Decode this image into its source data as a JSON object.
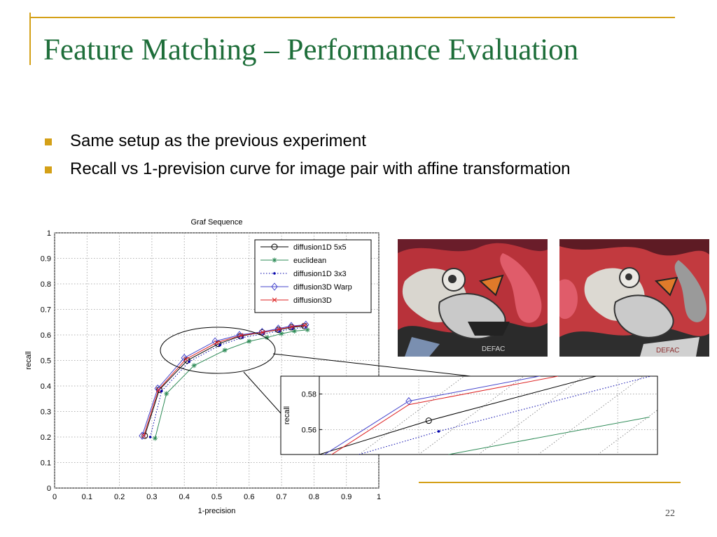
{
  "slide": {
    "title": "Feature Matching – Performance Evaluation",
    "bullets": [
      "Same setup as the previous experiment",
      "Recall vs 1-prevision curve for image pair with affine transformation"
    ],
    "page_number": "22"
  },
  "colors": {
    "title": "#1e6e3a",
    "accent": "#d4a017"
  },
  "chart_data": [
    {
      "type": "line",
      "title": "Graf Sequence",
      "xlabel": "1-precision",
      "ylabel": "recall",
      "xlim": [
        0,
        1
      ],
      "ylim": [
        0,
        1
      ],
      "xticks": [
        "0",
        "0.1",
        "0.2",
        "0.3",
        "0.4",
        "0.5",
        "0.6",
        "0.7",
        "0.8",
        "0.9",
        "1"
      ],
      "yticks": [
        "0",
        "0.1",
        "0.2",
        "0.3",
        "0.4",
        "0.5",
        "0.6",
        "0.7",
        "0.8",
        "0.9",
        "1"
      ],
      "grid": true,
      "legend_position": "top-right",
      "series": [
        {
          "name": "diffusion1D 5x5",
          "color": "#000000",
          "marker": "circle",
          "dash": "solid",
          "x": [
            0.278,
            0.323,
            0.409,
            0.505,
            0.573,
            0.64,
            0.69,
            0.73,
            0.77
          ],
          "y": [
            0.205,
            0.385,
            0.5,
            0.565,
            0.595,
            0.61,
            0.62,
            0.63,
            0.635
          ]
        },
        {
          "name": "euclidean",
          "color": "#2e8b57",
          "marker": "star",
          "dash": "solid",
          "x": [
            0.31,
            0.345,
            0.43,
            0.525,
            0.6,
            0.655,
            0.7,
            0.74,
            0.78
          ],
          "y": [
            0.195,
            0.37,
            0.48,
            0.54,
            0.575,
            0.59,
            0.605,
            0.615,
            0.62
          ]
        },
        {
          "name": "diffusion1D 3x3",
          "color": "#0000aa",
          "marker": "dot",
          "dash": "dotted",
          "x": [
            0.295,
            0.33,
            0.415,
            0.51,
            0.58,
            0.645,
            0.695,
            0.735,
            0.775
          ],
          "y": [
            0.2,
            0.38,
            0.495,
            0.56,
            0.59,
            0.605,
            0.615,
            0.625,
            0.63
          ]
        },
        {
          "name": "diffusion3D Warp",
          "color": "#4444cc",
          "marker": "diamond",
          "dash": "solid",
          "x": [
            0.27,
            0.318,
            0.4,
            0.495,
            0.57,
            0.64,
            0.69,
            0.73,
            0.775
          ],
          "y": [
            0.205,
            0.39,
            0.51,
            0.575,
            0.6,
            0.612,
            0.625,
            0.635,
            0.64
          ]
        },
        {
          "name": "diffusion3D",
          "color": "#dd2222",
          "marker": "cross",
          "dash": "solid",
          "x": [
            0.275,
            0.32,
            0.405,
            0.5,
            0.575,
            0.642,
            0.692,
            0.732,
            0.772
          ],
          "y": [
            0.205,
            0.385,
            0.505,
            0.57,
            0.598,
            0.61,
            0.622,
            0.632,
            0.638
          ]
        }
      ]
    },
    {
      "type": "line",
      "ylabel": "recall",
      "yticks": [
        "0.56",
        "0.58"
      ],
      "xlim": [
        0.45,
        0.62
      ],
      "ylim": [
        0.546,
        0.59
      ],
      "grid": true,
      "series": [
        {
          "name": "diffusion1D 5x5",
          "color": "#000000",
          "marker": "circle",
          "dash": "solid",
          "x": [
            0.45,
            0.505,
            0.606
          ],
          "y": [
            0.546,
            0.565,
            0.595
          ]
        },
        {
          "name": "euclidean",
          "color": "#2e8b57",
          "marker": "star",
          "dash": "solid",
          "x": [
            0.515,
            0.616
          ],
          "y": [
            0.546,
            0.567
          ]
        },
        {
          "name": "diffusion1D 3x3",
          "color": "#0000aa",
          "marker": "dot",
          "dash": "dotted",
          "x": [
            0.47,
            0.51,
            0.62
          ],
          "y": [
            0.546,
            0.559,
            0.591
          ]
        },
        {
          "name": "diffusion3D Warp",
          "color": "#4444cc",
          "marker": "diamond",
          "dash": "solid",
          "x": [
            0.43,
            0.495,
            0.57
          ],
          "y": [
            0.53,
            0.576,
            0.592
          ]
        },
        {
          "name": "diffusion3D",
          "color": "#dd2222",
          "marker": "cross",
          "dash": "solid",
          "x": [
            0.43,
            0.495,
            0.57
          ],
          "y": [
            0.527,
            0.574,
            0.59
          ]
        }
      ]
    }
  ],
  "images": [
    {
      "icon": "graffiti-photo-icon"
    },
    {
      "icon": "graffiti-photo-warped-icon"
    }
  ]
}
